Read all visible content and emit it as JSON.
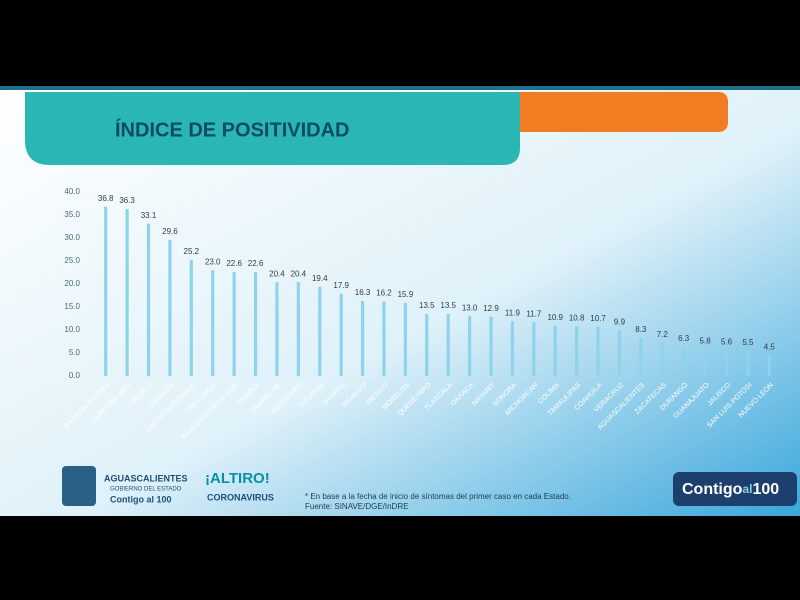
{
  "chart_data": {
    "type": "bar",
    "title": "ÍNDICE DE POSITIVIDAD",
    "categories": [
      "BAJA CALIFORNIA",
      "QUINTANA ROO",
      "TABASCO",
      "SINALOA",
      "DISTRITO FEDERAL",
      "CHIHUAHUA",
      "BAJA CALIFORNIA SUR",
      "PUEBLA",
      "CAMPECHE",
      "GUERRERO",
      "YUCATAN",
      "CHIAPAS",
      "HIDALGO",
      "MEXICO",
      "MORELOS",
      "QUERETARO",
      "TLAXCALA",
      "OAXACA",
      "NAYARIT",
      "SONORA",
      "MICHOACAN",
      "COLIMA",
      "TAMAULIPAS",
      "COAHUILA",
      "VERACRUZ",
      "AGUASCALIENTES",
      "ZACATECAS",
      "DURANGO",
      "GUANAJUATO",
      "JALISCO",
      "SAN LUIS POTOSI",
      "NUEVO LEON"
    ],
    "values": [
      36.8,
      36.3,
      33.1,
      29.6,
      25.2,
      23.0,
      22.6,
      22.6,
      20.4,
      20.4,
      19.4,
      17.9,
      16.3,
      16.2,
      15.9,
      13.5,
      13.5,
      13.0,
      12.9,
      11.9,
      11.7,
      10.9,
      10.8,
      10.7,
      9.9,
      8.3,
      7.2,
      6.3,
      5.8,
      5.6,
      5.5,
      4.5
    ],
    "value_labels": [
      "36.8",
      "36.3",
      "33.1",
      "29.6",
      "25.2",
      "23.0",
      "22.6",
      "22.6",
      "20.4",
      "20.4",
      "19.4",
      "17.9",
      "16.3",
      "16.2",
      "15.9",
      "13.5",
      "13.5",
      "13.0",
      "12.9",
      "11.9",
      "11.7",
      "10.9",
      "10.8",
      "10.7",
      "9.9",
      "8.3",
      "7.2",
      "6.3",
      "5.8",
      "5.6",
      "5.5",
      "4.5"
    ],
    "color": "#8fd3ea",
    "ylim": [
      0,
      40
    ],
    "yticks": [
      {
        "value": 0,
        "label": "0.0"
      },
      {
        "value": 5,
        "label": "5.0"
      },
      {
        "value": 10,
        "label": "10.0"
      },
      {
        "value": 15,
        "label": "15.0"
      },
      {
        "value": 20,
        "label": "20.0"
      },
      {
        "value": 25,
        "label": "25.0"
      },
      {
        "value": 30,
        "label": "30.0"
      },
      {
        "value": 35,
        "label": "35.0"
      },
      {
        "value": 40,
        "label": "40.0"
      }
    ],
    "grid": false
  },
  "footer": {
    "note": "* En base a la fecha de inicio de síntomas del primer caso en cada Estado.",
    "source": "Fuente: SINAVE/DGE/InDRE",
    "state_logo": {
      "name": "AGUASCALIENTES",
      "subtitle": "GOBIERNO DEL ESTADO",
      "slogan": "Contigo al 100"
    },
    "campaign_logo": {
      "name": "¡ALTIRO!",
      "subtitle": "CORONAVIRUS"
    },
    "badge": [
      "Contigo",
      "al",
      "100"
    ]
  }
}
